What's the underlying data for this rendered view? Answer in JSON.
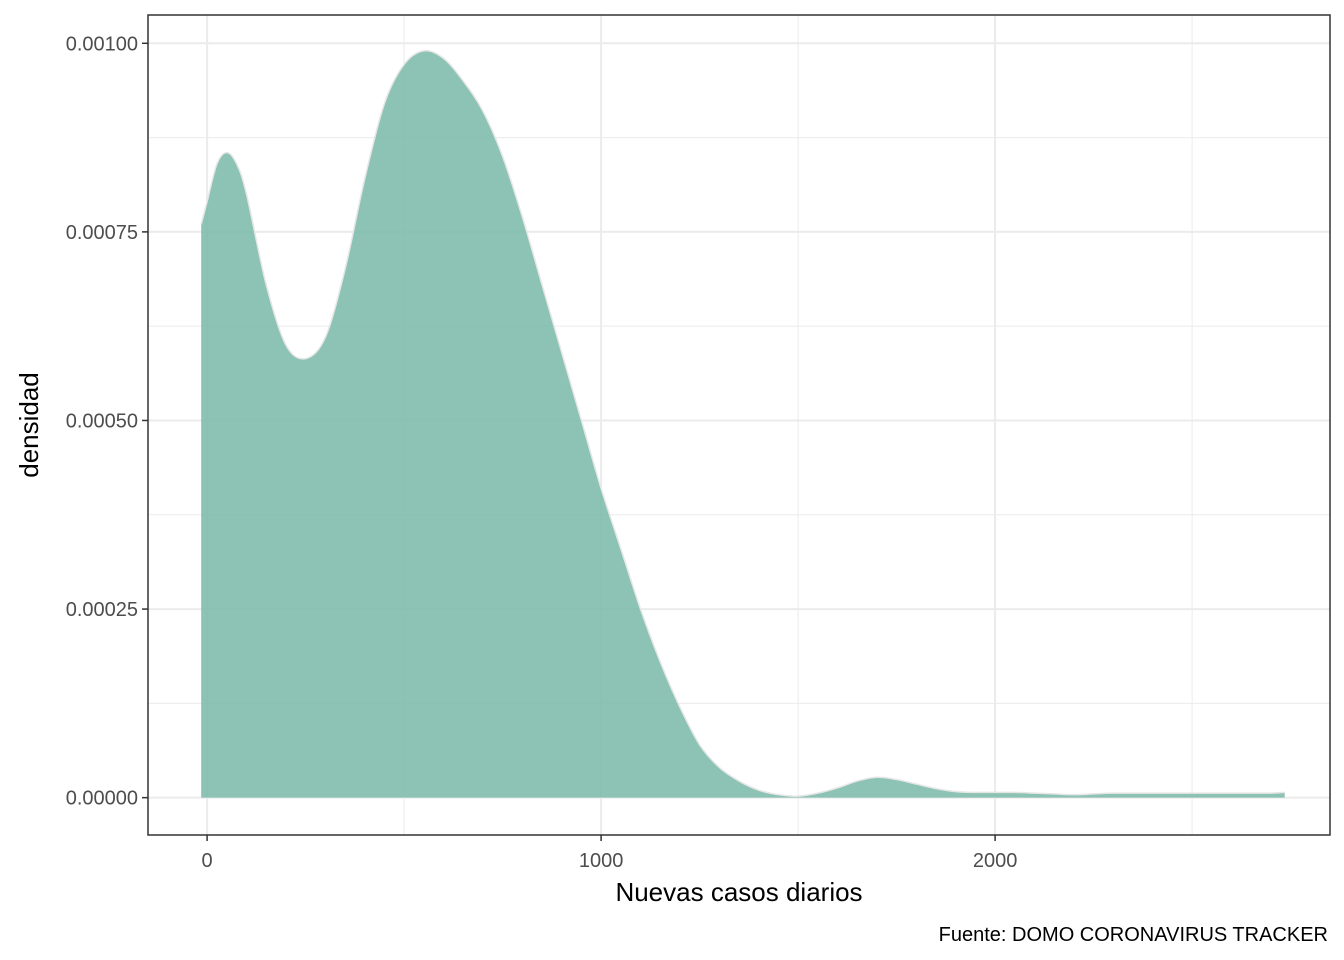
{
  "chart_data": {
    "type": "area",
    "title": "",
    "xlabel": "Nuevas casos diarios",
    "ylabel": "densidad",
    "caption": "Fuente: DOMO CORONAVIRUS TRACKER",
    "xlim": [
      -150,
      2850
    ],
    "ylim": [
      -4.95e-05,
      0.0010375
    ],
    "x_ticks": [
      0,
      1000,
      2000
    ],
    "x_tick_labels": [
      "0",
      "1000",
      "2000"
    ],
    "x_minor_ticks": [
      500,
      1500,
      2500
    ],
    "y_ticks": [
      0,
      0.00025,
      0.0005,
      0.00075,
      0.001
    ],
    "y_tick_labels": [
      "0.00000",
      "0.00025",
      "0.00050",
      "0.00075",
      "0.00100"
    ],
    "y_minor_ticks": [
      0.000125,
      0.000375,
      0.000625,
      0.000875
    ],
    "grid": true,
    "colors": {
      "fill": "#7fbcac",
      "outline": "#e6e6e6",
      "panel_border": "#333333",
      "grid": "#ebebeb"
    },
    "series": [
      {
        "x": [
          -15,
          0,
          25,
          50,
          75,
          100,
          150,
          200,
          250,
          300,
          350,
          400,
          450,
          500,
          550,
          600,
          650,
          700,
          750,
          800,
          850,
          900,
          950,
          1000,
          1050,
          1100,
          1150,
          1200,
          1250,
          1300,
          1350,
          1400,
          1450,
          1500,
          1550,
          1600,
          1650,
          1700,
          1750,
          1800,
          1850,
          1900,
          1950,
          2000,
          2050,
          2100,
          2150,
          2200,
          2250,
          2300,
          2400,
          2500,
          2600,
          2700,
          2735
        ],
        "y": [
          0.00076,
          0.00079,
          0.00084,
          0.000855,
          0.00084,
          0.0008,
          0.00068,
          0.0006,
          0.000582,
          0.00061,
          0.0007,
          0.00082,
          0.00092,
          0.000972,
          0.00099,
          0.00098,
          0.00095,
          0.00091,
          0.00085,
          0.00077,
          0.00068,
          0.00059,
          0.0005,
          0.00041,
          0.00033,
          0.00025,
          0.00018,
          0.00012,
          7e-05,
          4e-05,
          2.2e-05,
          1e-05,
          4e-06,
          2e-06,
          6e-06,
          1.3e-05,
          2.2e-05,
          2.7e-05,
          2.4e-05,
          1.8e-05,
          1.2e-05,
          8e-06,
          7e-06,
          7e-06,
          7e-06,
          6e-06,
          5e-06,
          4e-06,
          5e-06,
          6e-06,
          6e-06,
          6e-06,
          6e-06,
          6e-06,
          7e-06
        ]
      }
    ]
  }
}
